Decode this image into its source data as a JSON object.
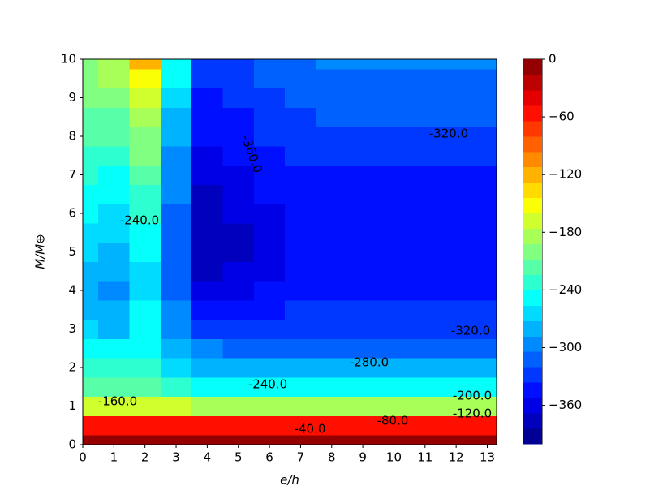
{
  "chart_data": {
    "type": "contourf",
    "xlabel": "e/h",
    "ylabel": "M/M⊕",
    "xlim": [
      0,
      13.3
    ],
    "ylim": [
      0,
      10
    ],
    "xticks": [
      0,
      1,
      2,
      3,
      4,
      5,
      6,
      7,
      8,
      9,
      10,
      11,
      12,
      13
    ],
    "yticks": [
      0,
      1,
      2,
      3,
      4,
      5,
      6,
      7,
      8,
      9,
      10
    ],
    "colormap": "jet",
    "levels": [
      -400,
      -384,
      -368,
      -352,
      -336,
      -320,
      -304,
      -288,
      -272,
      -256,
      -240,
      -224,
      -208,
      -192,
      -176,
      -160,
      -144,
      -128,
      -112,
      -96,
      -80,
      -64,
      -48,
      -32,
      -16,
      0
    ],
    "colorbar_ticks": [
      0,
      {
        "value": -60,
        "label": "−60"
      },
      {
        "value": -120,
        "label": "−120"
      },
      {
        "value": -180,
        "label": "−180"
      },
      {
        "value": -240,
        "label": "−240"
      },
      {
        "value": -300,
        "label": "−300"
      },
      {
        "value": -360,
        "label": "−360"
      }
    ],
    "x": [
      0,
      1,
      2,
      3,
      4,
      5,
      6,
      7,
      8,
      9,
      10,
      11,
      12,
      13
    ],
    "y": [
      0,
      0.5,
      1,
      1.5,
      2,
      2.5,
      3,
      3.5,
      4,
      4.5,
      5,
      5.5,
      6,
      6.5,
      7,
      7.5,
      8,
      8.5,
      9,
      9.5,
      10
    ],
    "z": [
      [
        -10,
        -10,
        -10,
        -10,
        -10,
        -10,
        -10,
        -10,
        -10,
        -10,
        -10,
        -10,
        -10,
        -10
      ],
      [
        -50,
        -50,
        -55,
        -52,
        -50,
        -50,
        -50,
        -50,
        -50,
        -50,
        -50,
        -50,
        -50,
        -50
      ],
      [
        -165,
        -165,
        -165,
        -175,
        -185,
        -185,
        -185,
        -185,
        -185,
        -185,
        -185,
        -185,
        -185,
        -185
      ],
      [
        -215,
        -215,
        -215,
        -225,
        -240,
        -240,
        -240,
        -240,
        -240,
        -240,
        -240,
        -240,
        -240,
        -240
      ],
      [
        -230,
        -235,
        -225,
        -260,
        -275,
        -280,
        -280,
        -282,
        -283,
        -283,
        -283,
        -283,
        -283,
        -283
      ],
      [
        -250,
        -255,
        -240,
        -280,
        -300,
        -305,
        -305,
        -310,
        -310,
        -310,
        -310,
        -310,
        -310,
        -310
      ],
      [
        -265,
        -275,
        -250,
        -290,
        -320,
        -325,
        -322,
        -320,
        -320,
        -320,
        -320,
        -320,
        -320,
        -320
      ],
      [
        -275,
        -283,
        -255,
        -300,
        -340,
        -345,
        -340,
        -333,
        -333,
        -333,
        -333,
        -333,
        -333,
        -333
      ],
      [
        -280,
        -288,
        -258,
        -305,
        -358,
        -360,
        -350,
        -340,
        -340,
        -340,
        -340,
        -340,
        -340,
        -340
      ],
      [
        -278,
        -285,
        -257,
        -308,
        -368,
        -365,
        -355,
        -345,
        -342,
        -342,
        -342,
        -342,
        -342,
        -342
      ],
      [
        -270,
        -278,
        -252,
        -310,
        -375,
        -368,
        -360,
        -348,
        -343,
        -343,
        -343,
        -343,
        -343,
        -343
      ],
      [
        -262,
        -268,
        -245,
        -308,
        -380,
        -370,
        -358,
        -347,
        -343,
        -343,
        -343,
        -343,
        -343,
        -343
      ],
      [
        -255,
        -260,
        -238,
        -305,
        -378,
        -365,
        -352,
        -345,
        -342,
        -342,
        -342,
        -342,
        -342,
        -342
      ],
      [
        -248,
        -250,
        -228,
        -300,
        -372,
        -360,
        -348,
        -343,
        -340,
        -340,
        -340,
        -340,
        -340,
        -340
      ],
      [
        -238,
        -240,
        -218,
        -295,
        -365,
        -355,
        -345,
        -340,
        -338,
        -338,
        -338,
        -338,
        -338,
        -338
      ],
      [
        -228,
        -230,
        -205,
        -288,
        -358,
        -350,
        -340,
        -335,
        -333,
        -333,
        -333,
        -333,
        -333,
        -333
      ],
      [
        -218,
        -220,
        -195,
        -280,
        -350,
        -343,
        -333,
        -327,
        -323,
        -323,
        -323,
        -323,
        -323,
        -323
      ],
      [
        -210,
        -210,
        -180,
        -272,
        -345,
        -337,
        -327,
        -320,
        -317,
        -317,
        -317,
        -317,
        -317,
        -317
      ],
      [
        -203,
        -200,
        -165,
        -262,
        -340,
        -330,
        -322,
        -315,
        -312,
        -312,
        -312,
        -312,
        -312,
        -312
      ],
      [
        -198,
        -190,
        -145,
        -252,
        -335,
        -325,
        -318,
        -310,
        -307,
        -307,
        -307,
        -307,
        -307,
        -307
      ],
      [
        -195,
        -180,
        -125,
        -240,
        -330,
        -320,
        -315,
        -305,
        -302,
        -302,
        -302,
        -302,
        -302,
        -302
      ]
    ],
    "contour_labels": [
      {
        "value": -320,
        "label": "-320.0"
      },
      {
        "value": -360,
        "label": "-360.0"
      },
      {
        "value": -240,
        "label": "-240.0"
      },
      {
        "value": -320,
        "label": "-320.0"
      },
      {
        "value": -280,
        "label": "-280.0"
      },
      {
        "value": -240,
        "label": "-240.0"
      },
      {
        "value": -200,
        "label": "-200.0"
      },
      {
        "value": -160,
        "label": "-160.0"
      },
      {
        "value": -120,
        "label": "-120.0"
      },
      {
        "value": -80,
        "label": "-80.0"
      },
      {
        "value": -40,
        "label": "-40.0"
      }
    ]
  }
}
